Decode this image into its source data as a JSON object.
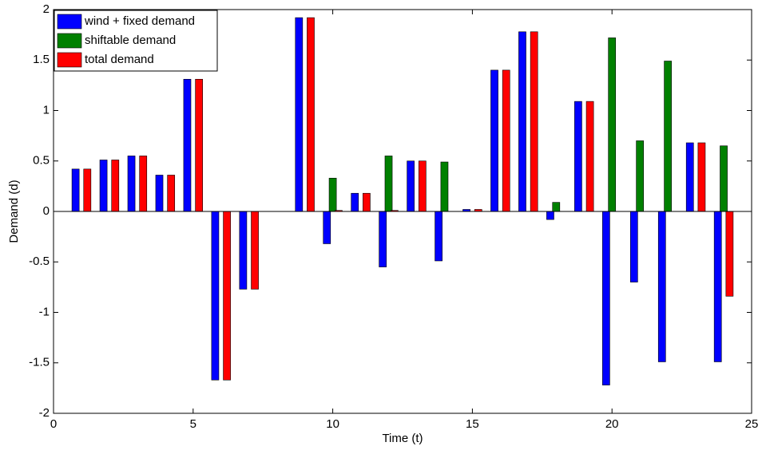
{
  "chart_data": {
    "type": "bar",
    "xlabel": "Time (t)",
    "ylabel": "Demand (d)",
    "x": [
      1,
      2,
      3,
      4,
      5,
      6,
      7,
      8,
      9,
      10,
      11,
      12,
      13,
      14,
      15,
      16,
      17,
      18,
      19,
      20,
      21,
      22,
      23,
      24
    ],
    "series": [
      {
        "name": "wind + fixed demand",
        "color": "#0000ff",
        "values": [
          0.42,
          0.51,
          0.55,
          0.36,
          1.31,
          -1.67,
          -0.77,
          0,
          1.92,
          -0.32,
          0.18,
          -0.55,
          0.5,
          -0.49,
          0.02,
          1.4,
          1.78,
          -0.08,
          1.09,
          -1.72,
          -0.7,
          -1.49,
          0.68,
          -1.49
        ]
      },
      {
        "name": "shiftable demand",
        "color": "#008000",
        "values": [
          0,
          0,
          0,
          0,
          0,
          0,
          0,
          0,
          0,
          0.33,
          0,
          0.55,
          0,
          0.49,
          0,
          0,
          0,
          0.09,
          0,
          1.72,
          0.7,
          1.49,
          0,
          0.65
        ]
      },
      {
        "name": "total demand",
        "color": "#ff0000",
        "values": [
          0.42,
          0.51,
          0.55,
          0.36,
          1.31,
          -1.67,
          -0.77,
          0,
          1.92,
          0.01,
          0.18,
          0.01,
          0.5,
          0,
          0.02,
          1.4,
          1.78,
          0,
          1.09,
          0,
          0,
          0,
          0.68,
          -0.84
        ]
      }
    ],
    "xlim": [
      0,
      25
    ],
    "xticks": [
      0,
      5,
      10,
      15,
      20,
      25
    ],
    "ylim": [
      -2,
      2
    ],
    "yticks": [
      -2,
      -1.5,
      -1,
      -0.5,
      0,
      0.5,
      1,
      1.5,
      2
    ],
    "legend": "upper left"
  }
}
